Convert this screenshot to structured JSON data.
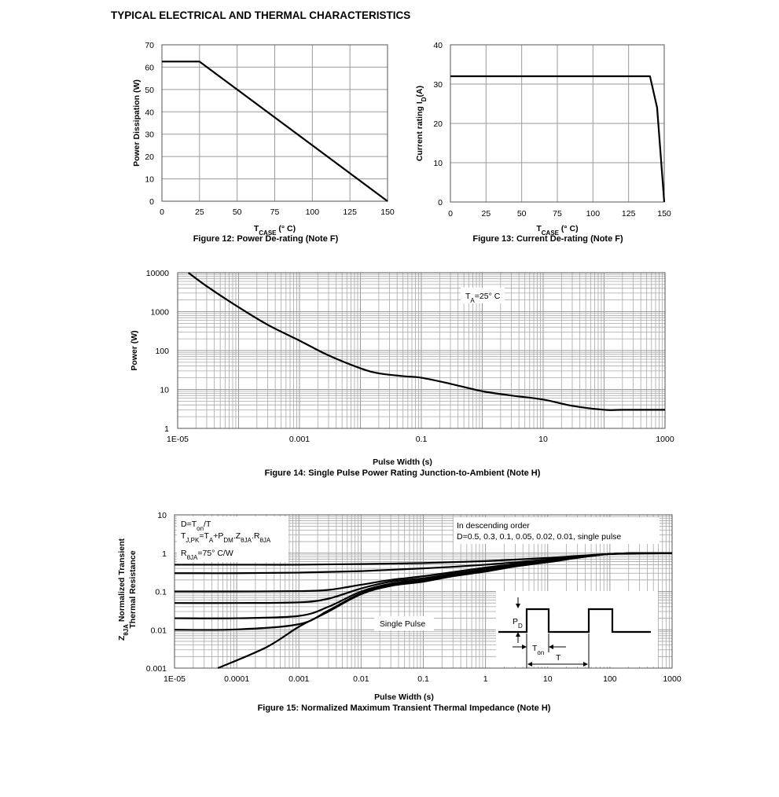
{
  "page": {
    "title": "TYPICAL ELECTRICAL AND THERMAL CHARACTERISTICS"
  },
  "chart_data": [
    {
      "id": "fig12",
      "type": "line",
      "caption": "Figure 12: Power De-rating (Note F)",
      "xlabel": {
        "main": "T",
        "sub": "CASE",
        "unit": " (°  C)"
      },
      "ylabel": "Power Dissipation (W)",
      "xlim": [
        0,
        150
      ],
      "ylim": [
        0,
        70
      ],
      "xticks": [
        0,
        25,
        50,
        75,
        100,
        125,
        150
      ],
      "yticks": [
        0,
        10,
        20,
        30,
        40,
        50,
        60,
        70
      ],
      "grid": true,
      "series": [
        {
          "x": [
            0,
            25,
            150
          ],
          "y": [
            62.5,
            62.5,
            0
          ]
        }
      ]
    },
    {
      "id": "fig13",
      "type": "line",
      "caption": "Figure 13: Current De-rating (Note F)",
      "xlabel": {
        "main": "T",
        "sub": "CASE",
        "unit": " (°  C)"
      },
      "ylabel": {
        "main": "Current rating I",
        "sub": "D",
        "unit": "(A)"
      },
      "xlim": [
        0,
        150
      ],
      "ylim": [
        0,
        40
      ],
      "xticks": [
        0,
        25,
        50,
        75,
        100,
        125,
        150
      ],
      "yticks": [
        0,
        10,
        20,
        30,
        40
      ],
      "grid": true,
      "series": [
        {
          "x": [
            0,
            140,
            145,
            150
          ],
          "y": [
            32,
            32,
            24,
            0
          ]
        }
      ]
    },
    {
      "id": "fig14",
      "type": "line",
      "caption": "Figure 14: Single Pulse Power Rating Junction-to-Ambient (Note H)",
      "xlabel": "Pulse Width (s)",
      "ylabel": "Power (W)",
      "xscale": "log",
      "yscale": "log",
      "xlim": [
        1e-05,
        1000
      ],
      "ylim": [
        1,
        10000
      ],
      "xticklabels": [
        "1E-05",
        "0.001",
        "0.1",
        "10",
        "1000"
      ],
      "xtickvalues": [
        1e-05,
        0.001,
        0.1,
        10,
        1000
      ],
      "yticklabels": [
        "1",
        "10",
        "100",
        "1000",
        "10000"
      ],
      "ytickvalues": [
        1,
        10,
        100,
        1000,
        10000
      ],
      "grid": true,
      "annotation": {
        "main": "T",
        "sub": "A",
        "rest": "=25°  C"
      },
      "series": [
        {
          "x": [
            1.5e-05,
            3e-05,
            0.0001,
            0.0003,
            0.001,
            0.003,
            0.01,
            0.02,
            0.05,
            0.1,
            0.3,
            1,
            3,
            10,
            30,
            100,
            200,
            1000
          ],
          "y": [
            10000,
            4500,
            1300,
            460,
            180,
            75,
            35,
            26,
            22,
            20,
            14,
            9,
            7,
            5.5,
            3.8,
            3.0,
            3.0,
            3.0
          ]
        }
      ]
    },
    {
      "id": "fig15",
      "type": "line",
      "caption": "Figure 15: Normalized Maximum Transient Thermal Impedance (Note H)",
      "xlabel": "Pulse Width (s)",
      "ylabel_line1": {
        "main": "Z",
        "sub": "θJA",
        "rest": " Normalized Transient"
      },
      "ylabel_line2": "Thermal Resistance",
      "xscale": "log",
      "yscale": "log",
      "xlim": [
        1e-05,
        1000
      ],
      "ylim": [
        0.001,
        10
      ],
      "xticklabels": [
        "1E-05",
        "0.0001",
        "0.001",
        "0.01",
        "0.1",
        "1",
        "10",
        "100",
        "1000"
      ],
      "xtickvalues": [
        1e-05,
        0.0001,
        0.001,
        0.01,
        0.1,
        1,
        10,
        100,
        1000
      ],
      "yticklabels": [
        "0.001",
        "0.01",
        "0.1",
        "1",
        "10"
      ],
      "ytickvalues": [
        0.001,
        0.01,
        0.1,
        1,
        10
      ],
      "grid": true,
      "annot_left": {
        "line1": {
          "a": "D=T",
          "b": "on",
          "c": "/T"
        },
        "line2": {
          "a": "T",
          "b": "J,PK",
          "c": "=T",
          "d": "A",
          "e": "+P",
          "f": "DM",
          "g": ".Z",
          "h": "θJA",
          "i": ".R",
          "j": "θJA"
        },
        "line3": {
          "a": "R",
          "b": "θJA",
          "c": "=75°  C/W"
        }
      },
      "annot_right": {
        "line1": "In descending order",
        "line2": "D=0.5, 0.3, 0.1, 0.05, 0.02, 0.01, single pulse"
      },
      "single_pulse_label": "Single Pulse",
      "inset": {
        "pd": {
          "main": "P",
          "sub": "D"
        },
        "ton": {
          "main": "T",
          "sub": "on"
        },
        "t": "T"
      },
      "series": [
        {
          "x": [
            1e-05,
            0.0001,
            0.001,
            0.01,
            0.1,
            1,
            10,
            100,
            1000
          ],
          "y": [
            0.5,
            0.5,
            0.5,
            0.52,
            0.55,
            0.62,
            0.75,
            0.95,
            1.0
          ]
        },
        {
          "x": [
            1e-05,
            0.0001,
            0.001,
            0.01,
            0.1,
            1,
            10,
            100,
            1000
          ],
          "y": [
            0.3,
            0.3,
            0.31,
            0.34,
            0.4,
            0.5,
            0.68,
            0.95,
            1.0
          ]
        },
        {
          "x": [
            1e-05,
            0.0001,
            0.001,
            0.003,
            0.01,
            0.03,
            0.1,
            0.3,
            1,
            3,
            10,
            100,
            1000
          ],
          "y": [
            0.1,
            0.1,
            0.102,
            0.11,
            0.15,
            0.2,
            0.25,
            0.32,
            0.42,
            0.52,
            0.65,
            0.95,
            1.0
          ]
        },
        {
          "x": [
            1e-05,
            0.0001,
            0.001,
            0.003,
            0.01,
            0.03,
            0.1,
            0.3,
            1,
            3,
            10,
            100,
            1000
          ],
          "y": [
            0.05,
            0.05,
            0.052,
            0.065,
            0.12,
            0.18,
            0.22,
            0.29,
            0.38,
            0.5,
            0.62,
            0.95,
            1.0
          ]
        },
        {
          "x": [
            1e-05,
            0.0001,
            0.001,
            0.003,
            0.01,
            0.03,
            0.1,
            0.3,
            1,
            3,
            10,
            100,
            1000
          ],
          "y": [
            0.02,
            0.02,
            0.023,
            0.04,
            0.1,
            0.16,
            0.2,
            0.27,
            0.35,
            0.47,
            0.6,
            0.95,
            1.0
          ]
        },
        {
          "x": [
            1e-05,
            0.0001,
            0.001,
            0.003,
            0.01,
            0.03,
            0.1,
            0.3,
            1,
            3,
            10,
            100,
            1000
          ],
          "y": [
            0.01,
            0.0102,
            0.014,
            0.032,
            0.09,
            0.15,
            0.19,
            0.26,
            0.34,
            0.46,
            0.59,
            0.95,
            1.0
          ]
        },
        {
          "x": [
            5e-05,
            0.0003,
            0.001,
            0.003,
            0.01,
            0.03,
            0.1,
            0.3,
            1,
            3,
            10,
            100,
            1000
          ],
          "y": [
            0.001,
            0.0035,
            0.012,
            0.03,
            0.085,
            0.14,
            0.18,
            0.25,
            0.33,
            0.45,
            0.58,
            0.95,
            1.0
          ]
        }
      ]
    }
  ]
}
